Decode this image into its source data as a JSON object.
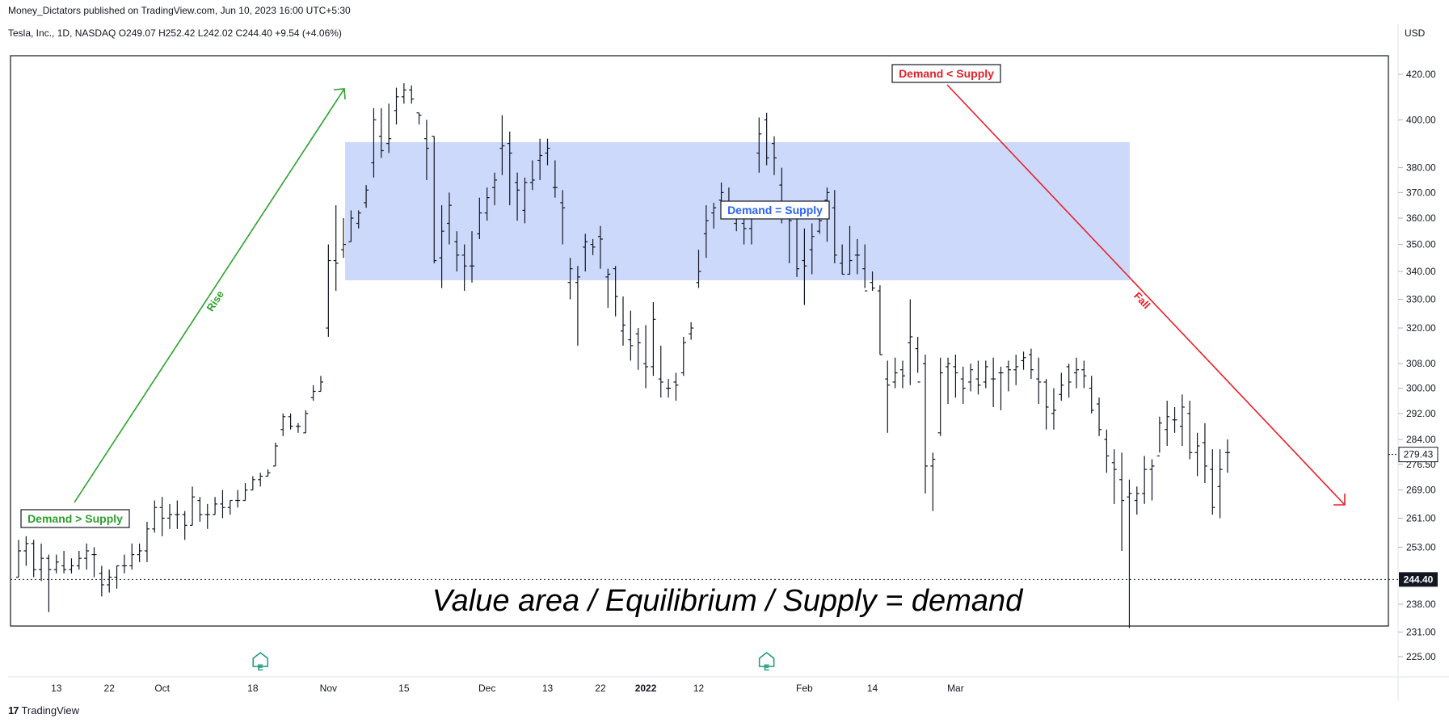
{
  "header": {
    "publisher": "Money_Dictators published on TradingView.com, Jun 10, 2023 16:00 UTC+5:30",
    "symbol_line": "Tesla, Inc., 1D, NASDAQ  O249.07  H252.42  L242.02  C244.40  +9.54 (+4.06%)",
    "currency": "USD"
  },
  "footer": {
    "logo_mark": "17",
    "logo_text": "TradingView"
  },
  "colors": {
    "green": "#2ca02c",
    "red": "#e8202a",
    "blue": "#2962ff",
    "zone": "#ccd9fb",
    "bars": "#131722"
  },
  "chart_data": {
    "type": "ohlc",
    "y_scale": "log",
    "ylim": [
      221,
      428
    ],
    "y_ticks": [
      "420.00",
      "400.00",
      "380.00",
      "370.00",
      "360.00",
      "350.00",
      "340.00",
      "330.00",
      "320.00",
      "308.00",
      "300.00",
      "292.00",
      "284.00",
      "276.50",
      "269.00",
      "261.00",
      "253.00",
      "238.00",
      "231.00",
      "225.00"
    ],
    "x_ticks": [
      {
        "label": "13",
        "bar": 5
      },
      {
        "label": "22",
        "bar": 12
      },
      {
        "label": "Oct",
        "bar": 19
      },
      {
        "label": "18",
        "bar": 31
      },
      {
        "label": "Nov",
        "bar": 41
      },
      {
        "label": "15",
        "bar": 51
      },
      {
        "label": "Dec",
        "bar": 62
      },
      {
        "label": "13",
        "bar": 70
      },
      {
        "label": "22",
        "bar": 77
      },
      {
        "label": "2022",
        "bar": 83,
        "bold": true
      },
      {
        "label": "12",
        "bar": 90
      },
      {
        "label": "Feb",
        "bar": 104
      },
      {
        "label": "14",
        "bar": 113
      },
      {
        "label": "Mar",
        "bar": 124
      }
    ],
    "current_price": {
      "label": "244.40",
      "value": 244.4
    },
    "marker_price": {
      "label": "279.43",
      "value": 279.43
    },
    "earnings_markers": [
      {
        "label": "E",
        "bar": 32
      },
      {
        "label": "E",
        "bar": 99
      }
    ],
    "bars": [
      {
        "o": 245,
        "h": 255,
        "l": 245,
        "c": 252
      },
      {
        "o": 252,
        "h": 256,
        "l": 248,
        "c": 254
      },
      {
        "o": 254,
        "h": 255,
        "l": 245,
        "c": 247
      },
      {
        "o": 247,
        "h": 254,
        "l": 244,
        "c": 250
      },
      {
        "o": 250,
        "h": 251,
        "l": 236,
        "c": 247
      },
      {
        "o": 247,
        "h": 251,
        "l": 246,
        "c": 249
      },
      {
        "o": 248,
        "h": 252,
        "l": 246,
        "c": 247
      },
      {
        "o": 247,
        "h": 250,
        "l": 246,
        "c": 248
      },
      {
        "o": 248,
        "h": 252,
        "l": 247,
        "c": 250
      },
      {
        "o": 250,
        "h": 254,
        "l": 247,
        "c": 252
      },
      {
        "o": 251,
        "h": 253,
        "l": 245,
        "c": 251
      },
      {
        "o": 246,
        "h": 248,
        "l": 240,
        "c": 243
      },
      {
        "o": 243,
        "h": 247,
        "l": 241,
        "c": 245
      },
      {
        "o": 245,
        "h": 248,
        "l": 242,
        "c": 248
      },
      {
        "o": 248,
        "h": 251,
        "l": 246,
        "c": 248
      },
      {
        "o": 248,
        "h": 254,
        "l": 247,
        "c": 251
      },
      {
        "o": 251,
        "h": 254,
        "l": 249,
        "c": 252
      },
      {
        "o": 252,
        "h": 260,
        "l": 249,
        "c": 258
      },
      {
        "o": 258,
        "h": 266,
        "l": 257,
        "c": 264
      },
      {
        "o": 264,
        "h": 267,
        "l": 256,
        "c": 261
      },
      {
        "o": 261,
        "h": 265,
        "l": 258,
        "c": 262
      },
      {
        "o": 262,
        "h": 266,
        "l": 258,
        "c": 262
      },
      {
        "o": 262,
        "h": 263,
        "l": 255,
        "c": 259
      },
      {
        "o": 259,
        "h": 270,
        "l": 259,
        "c": 267
      },
      {
        "o": 266,
        "h": 267,
        "l": 260,
        "c": 262
      },
      {
        "o": 262,
        "h": 265,
        "l": 258,
        "c": 262
      },
      {
        "o": 262,
        "h": 267,
        "l": 262,
        "c": 265
      },
      {
        "o": 265,
        "h": 269,
        "l": 261,
        "c": 264
      },
      {
        "o": 264,
        "h": 266,
        "l": 262,
        "c": 266
      },
      {
        "o": 266,
        "h": 269,
        "l": 264,
        "c": 266
      },
      {
        "o": 266,
        "h": 271,
        "l": 266,
        "c": 269
      },
      {
        "o": 269,
        "h": 273,
        "l": 269,
        "c": 272
      },
      {
        "o": 272,
        "h": 274,
        "l": 270,
        "c": 273
      },
      {
        "o": 273,
        "h": 275,
        "l": 273,
        "c": 274
      },
      {
        "o": 276,
        "h": 283,
        "l": 276,
        "c": 282
      },
      {
        "o": 287,
        "h": 292,
        "l": 285,
        "c": 291
      },
      {
        "o": 291,
        "h": 292,
        "l": 287,
        "c": 288
      },
      {
        "o": 288,
        "h": 289,
        "l": 286,
        "c": 288
      },
      {
        "o": 286,
        "h": 293,
        "l": 286,
        "c": 292
      },
      {
        "o": 297,
        "h": 301,
        "l": 296,
        "c": 299
      },
      {
        "o": 299,
        "h": 304,
        "l": 299,
        "c": 302
      },
      {
        "o": 320,
        "h": 350,
        "l": 317,
        "c": 344
      },
      {
        "o": 344,
        "h": 365,
        "l": 333,
        "c": 343
      },
      {
        "o": 348,
        "h": 360,
        "l": 345,
        "c": 350
      },
      {
        "o": 351,
        "h": 363,
        "l": 351,
        "c": 360
      },
      {
        "o": 358,
        "h": 363,
        "l": 356,
        "c": 362
      },
      {
        "o": 366,
        "h": 373,
        "l": 364,
        "c": 371
      },
      {
        "o": 382,
        "h": 405,
        "l": 376,
        "c": 400
      },
      {
        "o": 393,
        "h": 405,
        "l": 384,
        "c": 387
      },
      {
        "o": 390,
        "h": 407,
        "l": 386,
        "c": 392
      },
      {
        "o": 404,
        "h": 414,
        "l": 398,
        "c": 410
      },
      {
        "o": 410,
        "h": 416,
        "l": 407,
        "c": 413
      },
      {
        "o": 413,
        "h": 415,
        "l": 407,
        "c": 409
      },
      {
        "o": 403,
        "h": 403,
        "l": 398,
        "c": 402
      },
      {
        "o": 392,
        "h": 400,
        "l": 375,
        "c": 388
      },
      {
        "o": 393,
        "h": 393,
        "l": 343,
        "c": 344
      },
      {
        "o": 345,
        "h": 365,
        "l": 334,
        "c": 355
      },
      {
        "o": 358,
        "h": 370,
        "l": 350,
        "c": 365
      },
      {
        "o": 351,
        "h": 355,
        "l": 340,
        "c": 346
      },
      {
        "o": 346,
        "h": 350,
        "l": 333,
        "c": 342
      },
      {
        "o": 342,
        "h": 355,
        "l": 336,
        "c": 342
      },
      {
        "o": 354,
        "h": 368,
        "l": 352,
        "c": 362
      },
      {
        "o": 362,
        "h": 372,
        "l": 359,
        "c": 368
      },
      {
        "o": 372,
        "h": 378,
        "l": 365,
        "c": 375
      },
      {
        "o": 388,
        "h": 402,
        "l": 377,
        "c": 389
      },
      {
        "o": 390,
        "h": 395,
        "l": 365,
        "c": 386
      },
      {
        "o": 374,
        "h": 378,
        "l": 359,
        "c": 371
      },
      {
        "o": 363,
        "h": 376,
        "l": 358,
        "c": 374
      },
      {
        "o": 374,
        "h": 383,
        "l": 371,
        "c": 375
      },
      {
        "o": 383,
        "h": 392,
        "l": 375,
        "c": 385
      },
      {
        "o": 386,
        "h": 392,
        "l": 381,
        "c": 388
      },
      {
        "o": 372,
        "h": 383,
        "l": 368,
        "c": 372
      },
      {
        "o": 366,
        "h": 371,
        "l": 350,
        "c": 364
      },
      {
        "o": 336,
        "h": 345,
        "l": 330,
        "c": 341
      },
      {
        "o": 336,
        "h": 342,
        "l": 314,
        "c": 338
      },
      {
        "o": 349,
        "h": 354,
        "l": 340,
        "c": 351
      },
      {
        "o": 350,
        "h": 352,
        "l": 346,
        "c": 349
      },
      {
        "o": 353,
        "h": 357,
        "l": 341,
        "c": 352
      },
      {
        "o": 338,
        "h": 341,
        "l": 327,
        "c": 339
      },
      {
        "o": 341,
        "h": 342,
        "l": 324,
        "c": 331
      },
      {
        "o": 319,
        "h": 331,
        "l": 314,
        "c": 321
      },
      {
        "o": 316,
        "h": 326,
        "l": 309,
        "c": 314
      },
      {
        "o": 318,
        "h": 320,
        "l": 306,
        "c": 315
      },
      {
        "o": 308,
        "h": 321,
        "l": 300,
        "c": 307
      },
      {
        "o": 307,
        "h": 329,
        "l": 304,
        "c": 323
      }
    ],
    "bars_b": [
      {
        "o": 303,
        "h": 314,
        "l": 297,
        "c": 302
      },
      {
        "o": 300,
        "h": 303,
        "l": 297,
        "c": 300
      },
      {
        "o": 302,
        "h": 305,
        "l": 296,
        "c": 301
      },
      {
        "o": 305,
        "h": 317,
        "l": 304,
        "c": 315
      },
      {
        "o": 318,
        "h": 322,
        "l": 316,
        "c": 320
      },
      {
        "o": 336,
        "h": 348,
        "l": 334,
        "c": 340
      },
      {
        "o": 354,
        "h": 365,
        "l": 345,
        "c": 359
      },
      {
        "o": 362,
        "h": 366,
        "l": 356,
        "c": 364
      },
      {
        "o": 367,
        "h": 374,
        "l": 360,
        "c": 370
      },
      {
        "o": 366,
        "h": 372,
        "l": 360,
        "c": 364
      },
      {
        "o": 358,
        "h": 366,
        "l": 355,
        "c": 362
      },
      {
        "o": 358,
        "h": 366,
        "l": 350,
        "c": 356
      },
      {
        "o": 356,
        "h": 363,
        "l": 350,
        "c": 360
      },
      {
        "o": 386,
        "h": 401,
        "l": 378,
        "c": 394
      },
      {
        "o": 400,
        "h": 403,
        "l": 381,
        "c": 384
      },
      {
        "o": 390,
        "h": 393,
        "l": 377,
        "c": 384
      },
      {
        "o": 373,
        "h": 380,
        "l": 358,
        "c": 361
      },
      {
        "o": 362,
        "h": 365,
        "l": 343,
        "c": 359
      },
      {
        "o": 360,
        "h": 363,
        "l": 338,
        "c": 341
      },
      {
        "o": 344,
        "h": 356,
        "l": 328,
        "c": 342
      },
      {
        "o": 348,
        "h": 358,
        "l": 339,
        "c": 353
      },
      {
        "o": 355,
        "h": 366,
        "l": 354,
        "c": 359
      },
      {
        "o": 367,
        "h": 372,
        "l": 351,
        "c": 370
      },
      {
        "o": 364,
        "h": 371,
        "l": 343,
        "c": 346
      },
      {
        "o": 343,
        "h": 350,
        "l": 339,
        "c": 339
      },
      {
        "o": 339,
        "h": 357,
        "l": 339,
        "c": 344
      },
      {
        "o": 346,
        "h": 352,
        "l": 339,
        "c": 346
      },
      {
        "o": 341,
        "h": 350,
        "l": 334,
        "c": 333
      },
      {
        "o": 336,
        "h": 340,
        "l": 333,
        "c": 334
      },
      {
        "o": 333,
        "h": 335,
        "l": 311,
        "c": 311
      },
      {
        "o": 303,
        "h": 309,
        "l": 286,
        "c": 301
      },
      {
        "o": 302,
        "h": 310,
        "l": 300,
        "c": 305
      },
      {
        "o": 306,
        "h": 309,
        "l": 300,
        "c": 304
      },
      {
        "o": 315,
        "h": 330,
        "l": 301,
        "c": 317
      },
      {
        "o": 313,
        "h": 317,
        "l": 305,
        "c": 302
      },
      {
        "o": 308,
        "h": 311,
        "l": 268,
        "c": 276
      },
      {
        "o": 276,
        "h": 280,
        "l": 263,
        "c": 278
      },
      {
        "o": 286,
        "h": 310,
        "l": 285,
        "c": 305
      },
      {
        "o": 307,
        "h": 310,
        "l": 295,
        "c": 308
      },
      {
        "o": 307,
        "h": 311,
        "l": 297,
        "c": 305
      },
      {
        "o": 303,
        "h": 307,
        "l": 295,
        "c": 300
      },
      {
        "o": 302,
        "h": 308,
        "l": 299,
        "c": 306
      },
      {
        "o": 303,
        "h": 309,
        "l": 298,
        "c": 301
      },
      {
        "o": 302,
        "h": 309,
        "l": 300,
        "c": 307
      },
      {
        "o": 303,
        "h": 310,
        "l": 294,
        "c": 303
      },
      {
        "o": 305,
        "h": 307,
        "l": 293,
        "c": 305
      },
      {
        "o": 307,
        "h": 309,
        "l": 299,
        "c": 306
      },
      {
        "o": 306,
        "h": 311,
        "l": 301,
        "c": 307
      },
      {
        "o": 309,
        "h": 312,
        "l": 306,
        "c": 310
      },
      {
        "o": 311,
        "h": 313,
        "l": 303,
        "c": 306
      },
      {
        "o": 303,
        "h": 310,
        "l": 295,
        "c": 302
      },
      {
        "o": 302,
        "h": 303,
        "l": 287,
        "c": 294
      },
      {
        "o": 292,
        "h": 300,
        "l": 287,
        "c": 293
      },
      {
        "o": 298,
        "h": 305,
        "l": 296,
        "c": 301
      },
      {
        "o": 307,
        "h": 308,
        "l": 297,
        "c": 302
      },
      {
        "o": 305,
        "h": 310,
        "l": 300,
        "c": 306
      },
      {
        "o": 306,
        "h": 309,
        "l": 300,
        "c": 304
      },
      {
        "o": 300,
        "h": 304,
        "l": 292,
        "c": 293
      },
      {
        "o": 295,
        "h": 297,
        "l": 285,
        "c": 287
      },
      {
        "o": 284,
        "h": 287,
        "l": 274,
        "c": 279
      },
      {
        "o": 277,
        "h": 281,
        "l": 265,
        "c": 275
      },
      {
        "o": 272,
        "h": 280,
        "l": 252,
        "c": 266
      },
      {
        "o": 267,
        "h": 272,
        "l": 232,
        "c": 268
      },
      {
        "o": 266,
        "h": 270,
        "l": 262,
        "c": 268
      },
      {
        "o": 268,
        "h": 279,
        "l": 265,
        "c": 275
      },
      {
        "o": 275,
        "h": 278,
        "l": 266,
        "c": 276
      },
      {
        "o": 279,
        "h": 291,
        "l": 280,
        "c": 289
      },
      {
        "o": 287,
        "h": 296,
        "l": 282,
        "c": 291
      },
      {
        "o": 290,
        "h": 294,
        "l": 286,
        "c": 290
      },
      {
        "o": 288,
        "h": 298,
        "l": 282,
        "c": 294
      },
      {
        "o": 292,
        "h": 296,
        "l": 278,
        "c": 280
      },
      {
        "o": 280,
        "h": 286,
        "l": 273,
        "c": 282
      },
      {
        "o": 283,
        "h": 289,
        "l": 271,
        "c": 276
      },
      {
        "o": 275,
        "h": 281,
        "l": 262,
        "c": 264
      },
      {
        "o": 270,
        "h": 281,
        "l": 261,
        "c": 275
      },
      {
        "o": 280,
        "h": 284,
        "l": 274,
        "c": 280
      }
    ]
  },
  "annotations": {
    "demand_gt_supply": "Demand > Supply",
    "demand_eq_supply": "Demand = Supply",
    "demand_lt_supply": "Demand < Supply",
    "rise": "Rise",
    "fall": "Fall",
    "equilibrium": "Value area / Equilibrium / Supply = demand"
  }
}
